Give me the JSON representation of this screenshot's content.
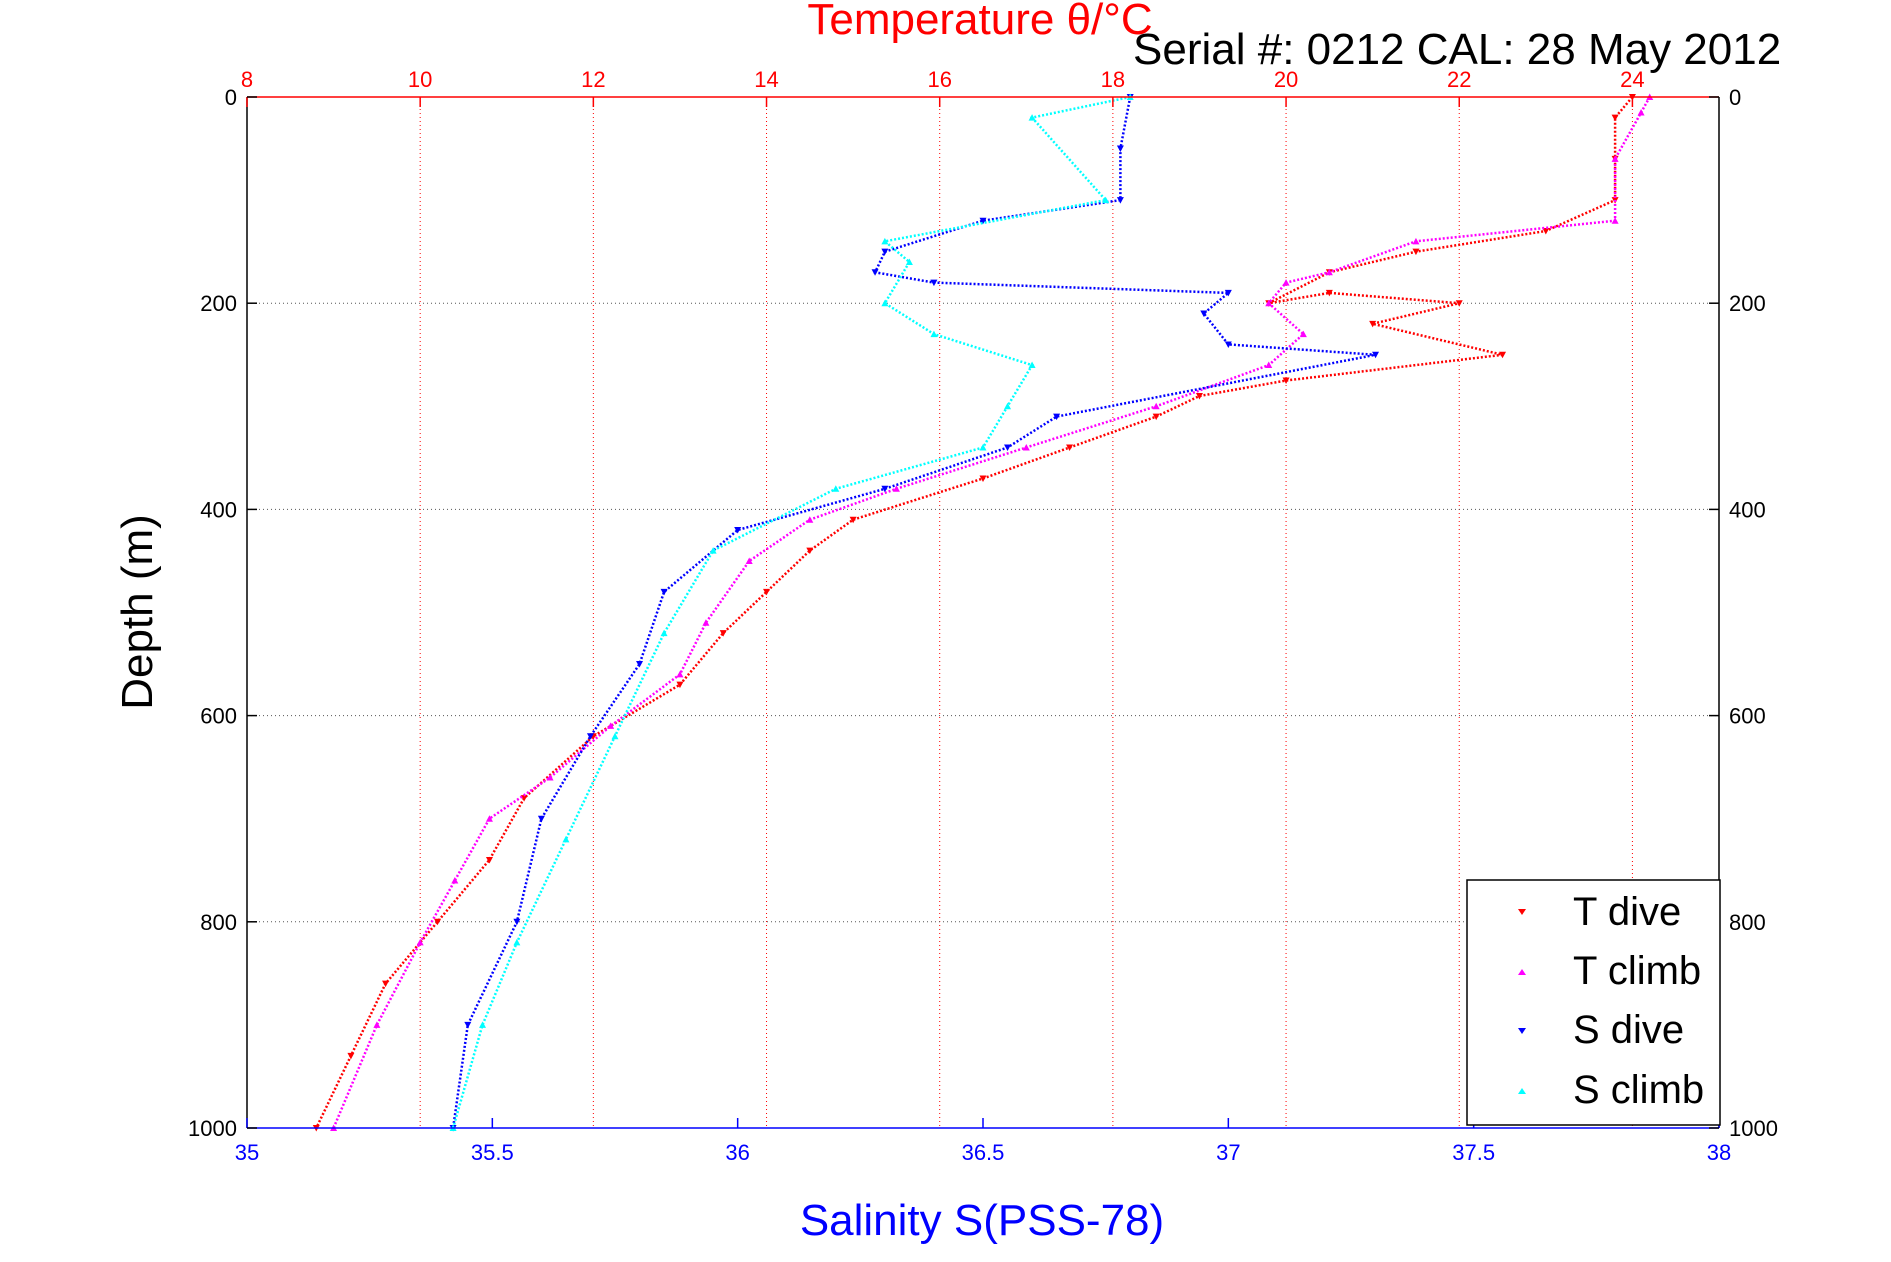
{
  "chart_data": {
    "type": "scatter",
    "top_axis": {
      "label": "Temperature θ/°C",
      "range": [
        8,
        25
      ],
      "ticks": [
        "8",
        "10",
        "12",
        "14",
        "16",
        "18",
        "20",
        "22",
        "24"
      ],
      "color": "#ff0000"
    },
    "bottom_axis": {
      "label": "Salinity S(PSS-78)",
      "range": [
        35,
        38
      ],
      "ticks": [
        "35",
        "35.5",
        "36",
        "36.5",
        "37",
        "37.5",
        "38"
      ],
      "color": "#0000ff"
    },
    "y_axis": {
      "label": "Depth (m)",
      "range": [
        0,
        1000
      ],
      "reversed": true,
      "ticks": [
        "0",
        "200",
        "400",
        "600",
        "800",
        "1000"
      ]
    },
    "annotation": "Serial #: 0212  CAL: 28 May 2012",
    "grid": {
      "temperature": true,
      "depth": true
    },
    "legend_position": "bottom-right",
    "series": [
      {
        "name": "T dive",
        "axis": "temperature",
        "color": "#ff0000",
        "marker": "triangle-down",
        "x": [
          24.0,
          23.8,
          23.8,
          23.8,
          23.0,
          21.5,
          20.5,
          19.8,
          20.5,
          22.0,
          21.0,
          22.5,
          20.0,
          19.0,
          18.5,
          17.5,
          16.5,
          15.0,
          14.5,
          14.0,
          13.5,
          13.0,
          12.0,
          11.2,
          10.8,
          10.2,
          9.6,
          9.2,
          8.8
        ],
        "y": [
          0,
          20,
          60,
          100,
          130,
          150,
          170,
          200,
          190,
          200,
          220,
          250,
          275,
          290,
          310,
          340,
          370,
          410,
          440,
          480,
          520,
          570,
          620,
          680,
          740,
          800,
          860,
          930,
          1000
        ]
      },
      {
        "name": "T climb",
        "axis": "temperature",
        "color": "#ff00ff",
        "marker": "triangle-up",
        "x": [
          24.2,
          24.1,
          23.8,
          23.8,
          21.5,
          20.5,
          20.0,
          19.8,
          20.2,
          19.8,
          18.5,
          17.0,
          15.5,
          14.5,
          13.8,
          13.3,
          13.0,
          12.2,
          11.5,
          10.8,
          10.4,
          10.0,
          9.5,
          9.0
        ],
        "y": [
          0,
          15,
          60,
          120,
          140,
          170,
          180,
          200,
          230,
          260,
          300,
          340,
          380,
          410,
          450,
          510,
          560,
          610,
          660,
          700,
          760,
          820,
          900,
          1000
        ]
      },
      {
        "name": "S dive",
        "axis": "salinity",
        "color": "#0000ff",
        "marker": "triangle-down",
        "x": [
          36.8,
          36.78,
          36.78,
          36.5,
          36.3,
          36.28,
          36.4,
          37.0,
          36.95,
          37.0,
          37.3,
          36.65,
          36.55,
          36.3,
          36.0,
          35.85,
          35.8,
          35.7,
          35.6,
          35.55,
          35.45,
          35.42
        ],
        "y": [
          0,
          50,
          100,
          120,
          150,
          170,
          180,
          190,
          210,
          240,
          250,
          310,
          340,
          380,
          420,
          480,
          550,
          620,
          700,
          800,
          900,
          1000
        ]
      },
      {
        "name": "S climb",
        "axis": "salinity",
        "color": "#00ffff",
        "marker": "triangle-up",
        "x": [
          36.8,
          36.6,
          36.75,
          36.3,
          36.35,
          36.3,
          36.4,
          36.6,
          36.55,
          36.5,
          36.2,
          35.95,
          35.85,
          35.75,
          35.65,
          35.55,
          35.48,
          35.42
        ],
        "y": [
          0,
          20,
          100,
          140,
          160,
          200,
          230,
          260,
          300,
          340,
          380,
          440,
          520,
          620,
          720,
          820,
          900,
          1000
        ]
      }
    ]
  }
}
